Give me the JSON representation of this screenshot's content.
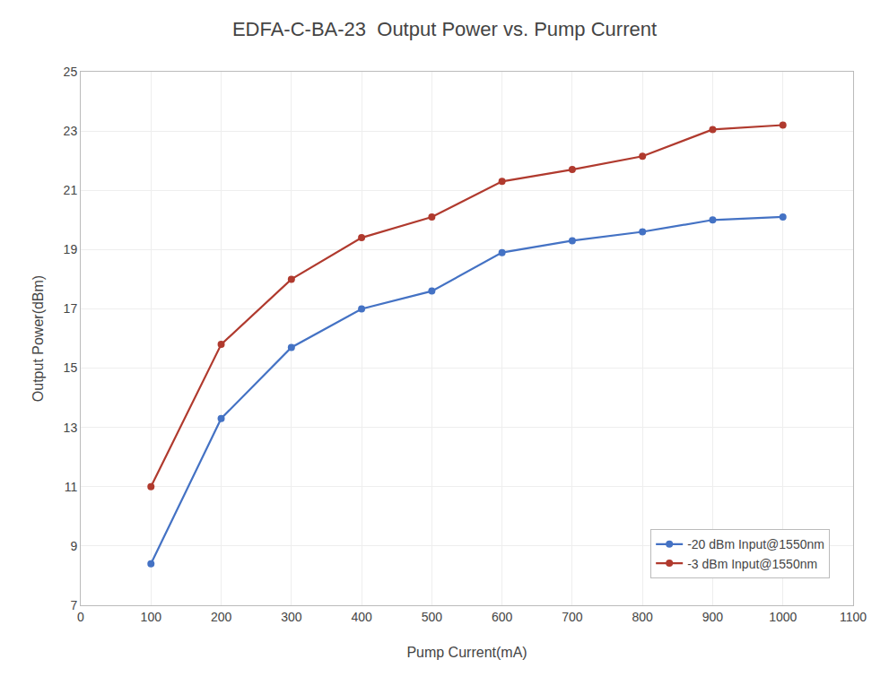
{
  "chart_data": {
    "type": "line",
    "title": "EDFA-C-BA-23  Output Power vs. Pump Current",
    "xlabel": "Pump Current(mA)",
    "ylabel": "Output Power(dBm)",
    "x": [
      100,
      200,
      300,
      400,
      500,
      600,
      700,
      800,
      900,
      1000
    ],
    "series": [
      {
        "name": "-20 dBm Input@1550nm",
        "color": "#4472C4",
        "marker": "circle",
        "line_style": "solid",
        "values": [
          8.4,
          13.3,
          15.7,
          17.0,
          17.6,
          18.9,
          19.3,
          19.6,
          20.0,
          20.1
        ]
      },
      {
        "name": "-3 dBm Input@1550nm",
        "color": "#B03A2E",
        "marker": "circle",
        "line_style": "solid",
        "values": [
          11.0,
          15.8,
          18.0,
          19.4,
          20.1,
          21.3,
          21.7,
          22.15,
          23.05,
          23.2
        ]
      }
    ],
    "xlim": [
      0,
      1100
    ],
    "ylim": [
      7,
      25
    ],
    "xticks": [
      0,
      100,
      200,
      300,
      400,
      500,
      600,
      700,
      800,
      900,
      1000,
      1100
    ],
    "yticks": [
      7,
      9,
      11,
      13,
      15,
      17,
      19,
      21,
      23,
      25
    ],
    "grid": true,
    "legend": "lower right"
  }
}
